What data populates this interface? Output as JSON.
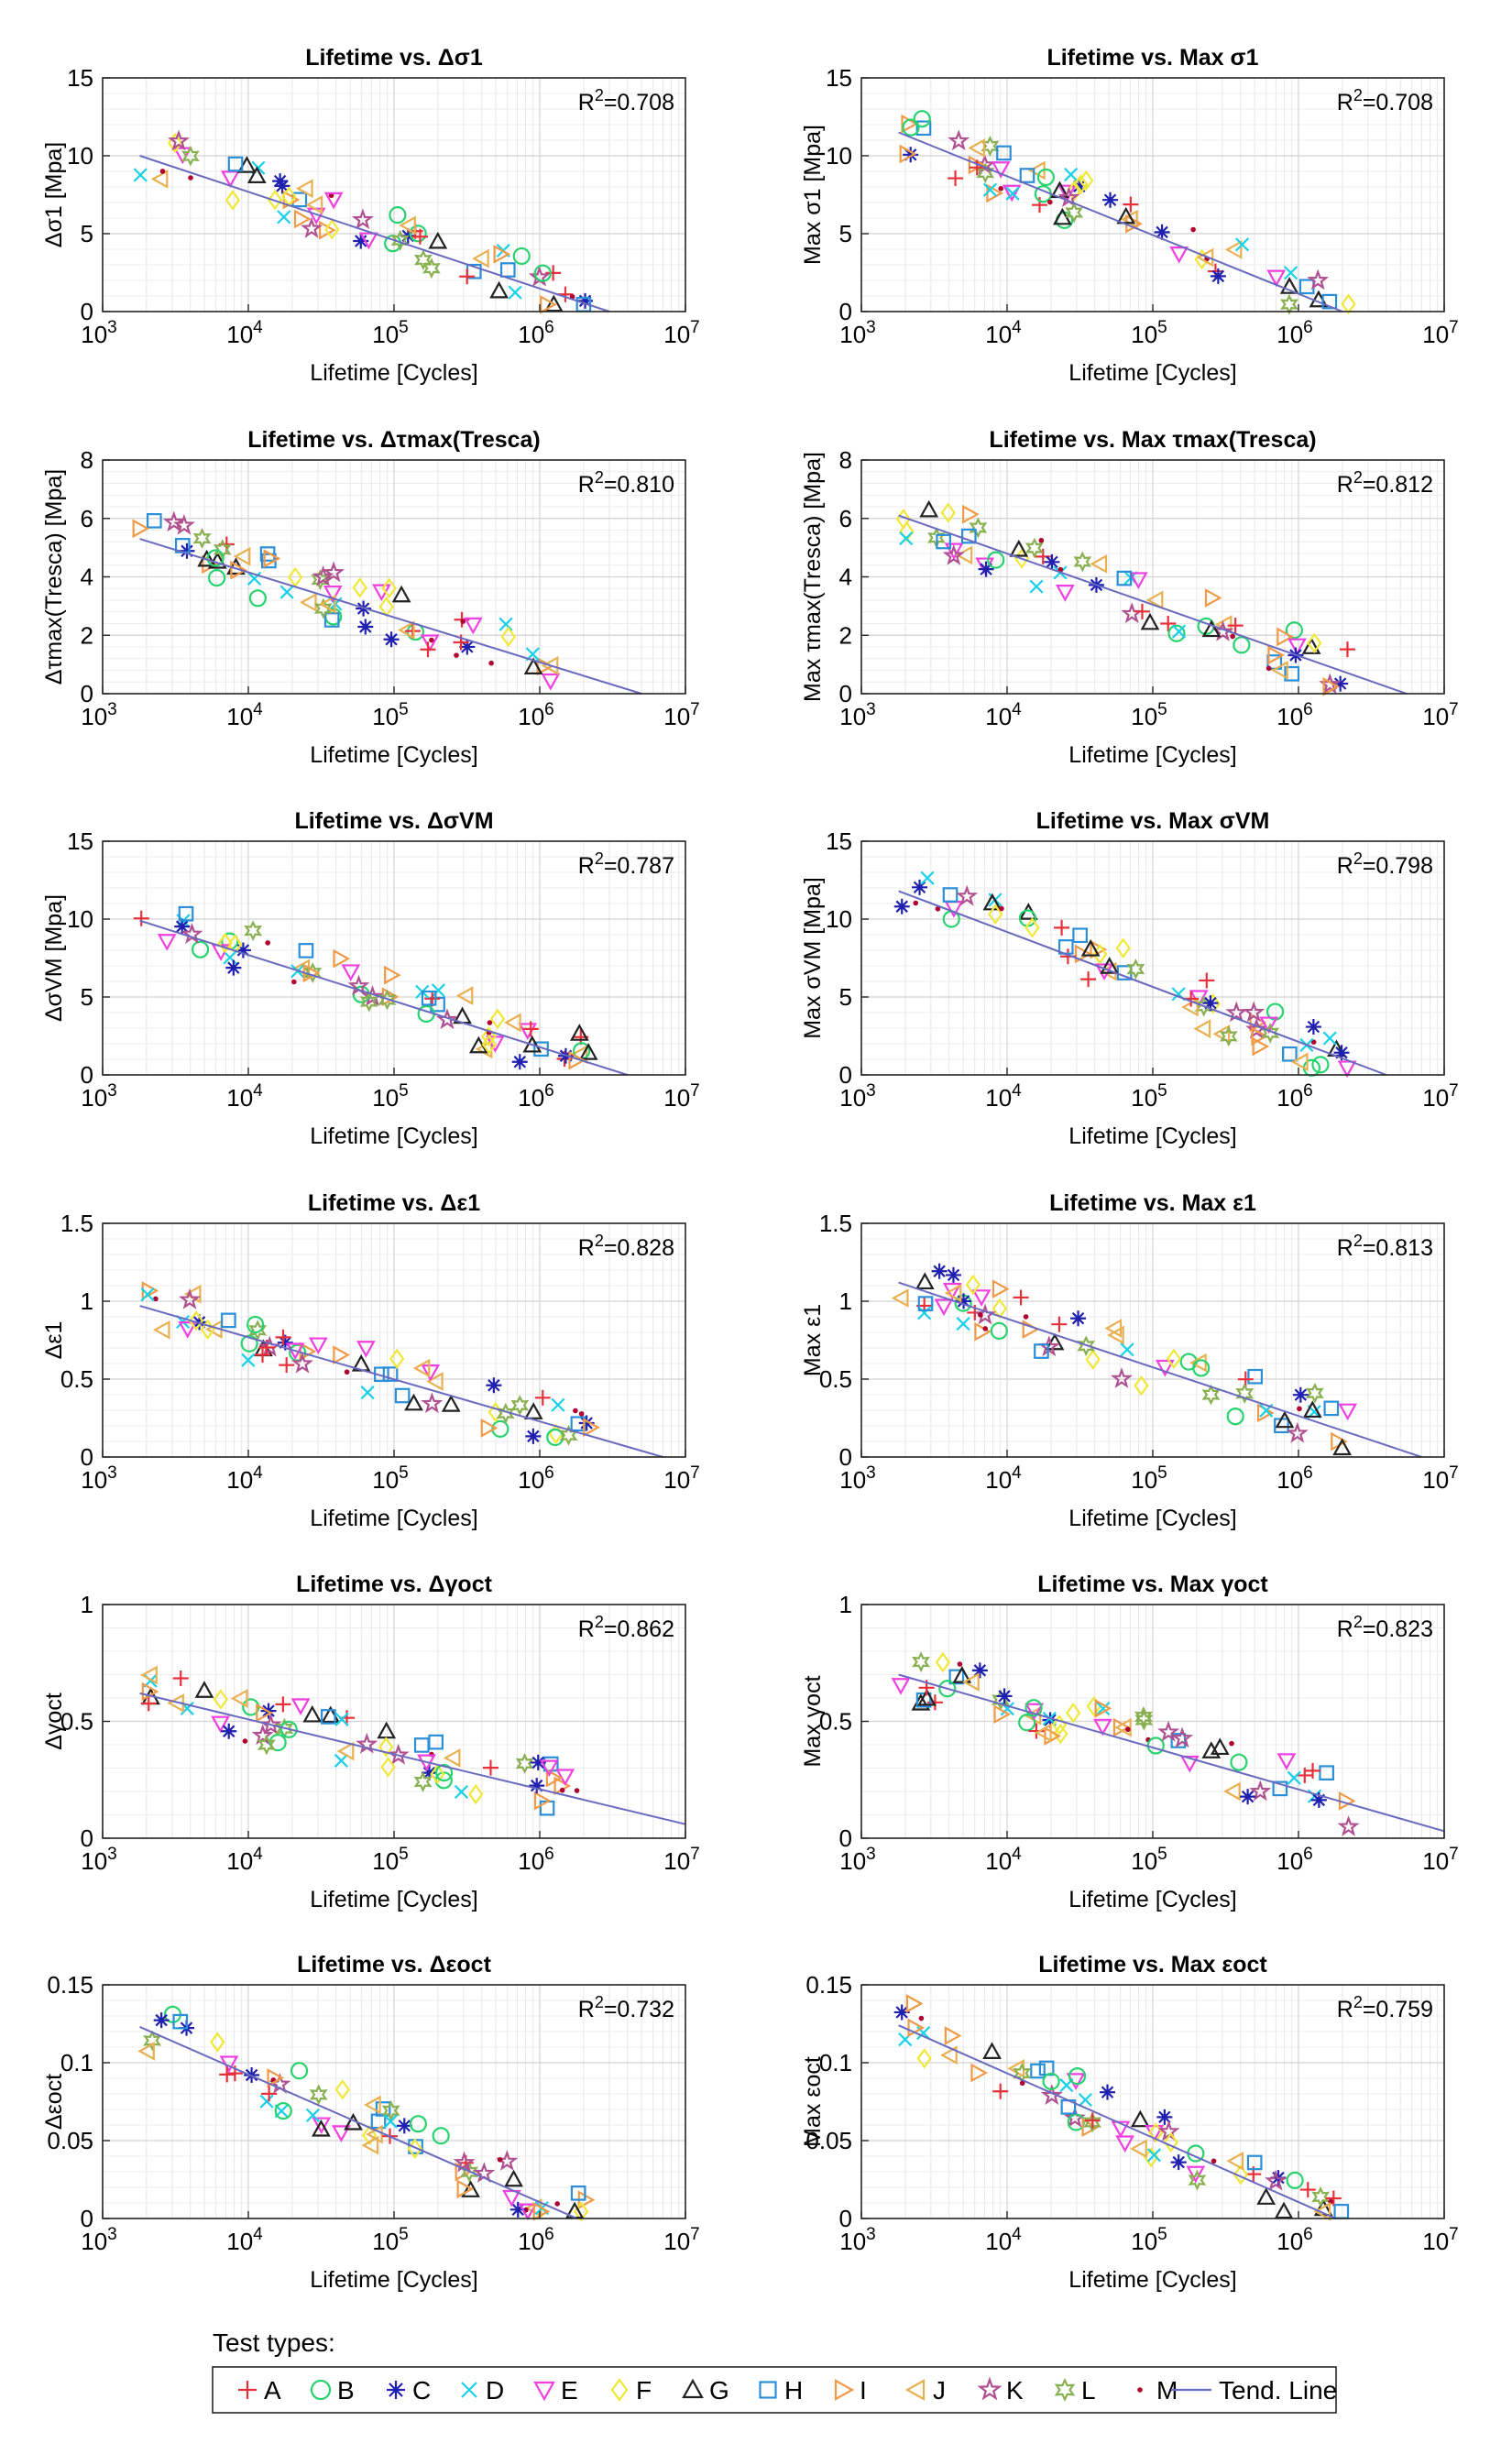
{
  "chart_data": [
    {
      "type": "scatter",
      "title": "Lifetime vs. Δσ1",
      "xlabel": "Lifetime [Cycles]",
      "ylabel": "Δσ1 [Mpa]",
      "xlim": [
        1000,
        10000000
      ],
      "xscale": "log",
      "ylim": [
        0,
        15
      ],
      "yticks": [
        "0",
        "5",
        "10",
        "15"
      ],
      "r2": "0.708",
      "trend": [
        [
          1800,
          10
        ],
        [
          3000000,
          0
        ]
      ]
    },
    {
      "type": "scatter",
      "title": "Lifetime vs. Max σ1",
      "xlabel": "Lifetime [Cycles]",
      "ylabel": "Max σ1 [Mpa]",
      "xlim": [
        1000,
        10000000
      ],
      "xscale": "log",
      "ylim": [
        0,
        15
      ],
      "yticks": [
        "0",
        "5",
        "10",
        "15"
      ],
      "r2": "0.708",
      "trend": [
        [
          1800,
          11.5
        ],
        [
          2000000,
          0
        ]
      ]
    },
    {
      "type": "scatter",
      "title": "Lifetime vs. Δτmax(Tresca)",
      "xlabel": "Lifetime [Cycles]",
      "ylabel": "Δτmax(Tresca) [Mpa]",
      "xlim": [
        1000,
        10000000
      ],
      "xscale": "log",
      "ylim": [
        0,
        8
      ],
      "yticks": [
        "0",
        "2",
        "4",
        "6",
        "8"
      ],
      "r2": "0.810",
      "trend": [
        [
          1800,
          5.3
        ],
        [
          5000000,
          0
        ]
      ]
    },
    {
      "type": "scatter",
      "title": "Lifetime vs. Max τmax(Tresca)",
      "xlabel": "Lifetime [Cycles]",
      "ylabel": "Max τmax(Tresca) [Mpa]",
      "xlim": [
        1000,
        10000000
      ],
      "xscale": "log",
      "ylim": [
        0,
        8
      ],
      "yticks": [
        "0",
        "2",
        "4",
        "6",
        "8"
      ],
      "r2": "0.812",
      "trend": [
        [
          1800,
          6.1
        ],
        [
          5500000,
          0
        ]
      ]
    },
    {
      "type": "scatter",
      "title": "Lifetime vs. ΔσVM",
      "xlabel": "Lifetime [Cycles]",
      "ylabel": "ΔσVM [Mpa]",
      "xlim": [
        1000,
        10000000
      ],
      "xscale": "log",
      "ylim": [
        0,
        15
      ],
      "yticks": [
        "0",
        "5",
        "10",
        "15"
      ],
      "r2": "0.787",
      "trend": [
        [
          1800,
          9.9
        ],
        [
          4000000,
          0
        ]
      ]
    },
    {
      "type": "scatter",
      "title": "Lifetime vs. Max σVM",
      "xlabel": "Lifetime [Cycles]",
      "ylabel": "Max σVM [Mpa]",
      "xlim": [
        1000,
        10000000
      ],
      "xscale": "log",
      "ylim": [
        0,
        15
      ],
      "yticks": [
        "0",
        "5",
        "10",
        "15"
      ],
      "r2": "0.798",
      "trend": [
        [
          1800,
          11.8
        ],
        [
          4000000,
          0
        ]
      ]
    },
    {
      "type": "scatter",
      "title": "Lifetime vs. Δε1",
      "xlabel": "Lifetime [Cycles]",
      "ylabel": "Δε1",
      "xlim": [
        1000,
        10000000
      ],
      "xscale": "log",
      "ylim": [
        0,
        1.5
      ],
      "yticks": [
        "0",
        "0.5",
        "1",
        "1.5"
      ],
      "r2": "0.828",
      "trend": [
        [
          1800,
          0.97
        ],
        [
          7000000,
          0
        ]
      ]
    },
    {
      "type": "scatter",
      "title": "Lifetime vs. Max ε1",
      "xlabel": "Lifetime [Cycles]",
      "ylabel": "Max ε1",
      "xlim": [
        1000,
        10000000
      ],
      "xscale": "log",
      "ylim": [
        0,
        1.5
      ],
      "yticks": [
        "0",
        "0.5",
        "1",
        "1.5"
      ],
      "r2": "0.813",
      "trend": [
        [
          1800,
          1.12
        ],
        [
          7000000,
          0
        ]
      ]
    },
    {
      "type": "scatter",
      "title": "Lifetime vs. Δγoct",
      "xlabel": "Lifetime [Cycles]",
      "ylabel": "Δγoct",
      "xlim": [
        1000,
        10000000
      ],
      "xscale": "log",
      "ylim": [
        0,
        1
      ],
      "yticks": [
        "0",
        "0.5",
        "1"
      ],
      "r2": "0.862",
      "trend": [
        [
          1800,
          0.62
        ],
        [
          10000000,
          0.06
        ]
      ]
    },
    {
      "type": "scatter",
      "title": "Lifetime vs. Max γoct",
      "xlabel": "Lifetime [Cycles]",
      "ylabel": "Max γoct",
      "xlim": [
        1000,
        10000000
      ],
      "xscale": "log",
      "ylim": [
        0,
        1
      ],
      "yticks": [
        "0",
        "0.5",
        "1"
      ],
      "r2": "0.823",
      "trend": [
        [
          1800,
          0.7
        ],
        [
          10000000,
          0.03
        ]
      ]
    },
    {
      "type": "scatter",
      "title": "Lifetime vs. Δεoct",
      "xlabel": "Lifetime [Cycles]",
      "ylabel": "Δεoct",
      "xlim": [
        1000,
        10000000
      ],
      "xscale": "log",
      "ylim": [
        0,
        0.15
      ],
      "yticks": [
        "0",
        "0.05",
        "0.1",
        "0.15"
      ],
      "r2": "0.732",
      "trend": [
        [
          1800,
          0.123
        ],
        [
          1800000,
          0
        ]
      ]
    },
    {
      "type": "scatter",
      "title": "Lifetime vs. Max εoct",
      "xlabel": "Lifetime [Cycles]",
      "ylabel": "Max εoct",
      "xlim": [
        1000,
        10000000
      ],
      "xscale": "log",
      "ylim": [
        0,
        0.15
      ],
      "yticks": [
        "0",
        "0.05",
        "0.1",
        "0.15"
      ],
      "r2": "0.759",
      "trend": [
        [
          1800,
          0.124
        ],
        [
          1800000,
          0
        ]
      ]
    }
  ],
  "series": [
    {
      "label": "A",
      "marker": "plus",
      "color": "#e8303a"
    },
    {
      "label": "B",
      "marker": "circle",
      "color": "#28d26e"
    },
    {
      "label": "C",
      "marker": "asterisk",
      "color": "#2020b0"
    },
    {
      "label": "D",
      "marker": "x",
      "color": "#18d0e8"
    },
    {
      "label": "E",
      "marker": "triangle-down",
      "color": "#f040e0"
    },
    {
      "label": "F",
      "marker": "diamond",
      "color": "#f0e838"
    },
    {
      "label": "G",
      "marker": "triangle-up",
      "color": "#222222"
    },
    {
      "label": "H",
      "marker": "square",
      "color": "#2a8fd8"
    },
    {
      "label": "I",
      "marker": "triangle-right",
      "color": "#f09a48"
    },
    {
      "label": "J",
      "marker": "triangle-left",
      "color": "#e8b050"
    },
    {
      "label": "K",
      "marker": "pentagram",
      "color": "#b05090"
    },
    {
      "label": "L",
      "marker": "hexagram",
      "color": "#88b050"
    },
    {
      "label": "M",
      "marker": "dot",
      "color": "#b00030"
    },
    {
      "label": "Tend. Line",
      "marker": "line",
      "color": "#6a6ac0"
    }
  ],
  "xticks": [
    "10",
    "10",
    "10",
    "10",
    "10"
  ],
  "xtick_exponents": [
    "3",
    "4",
    "5",
    "6",
    "7"
  ],
  "r2_prefix": "R",
  "r2_sup": "2",
  "legend": {
    "title": "Test types:"
  }
}
